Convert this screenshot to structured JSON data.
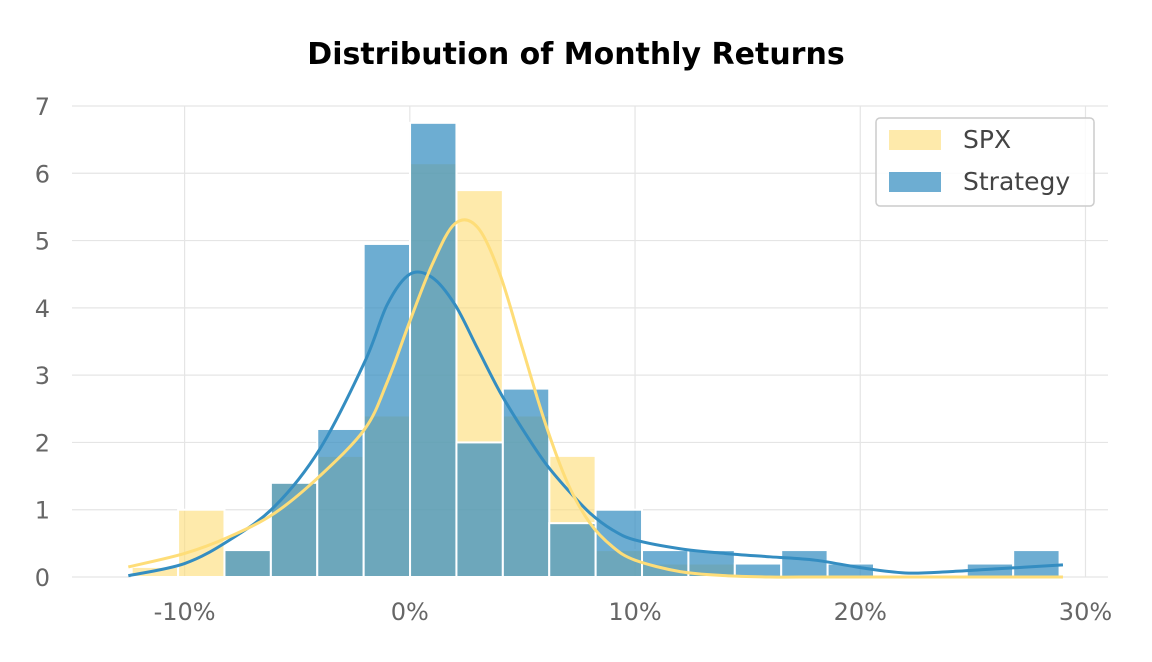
{
  "chart_data": {
    "type": "bar",
    "title": "Distribution of Monthly Returns",
    "xlabel": "",
    "ylabel": "",
    "x_unit": "%",
    "xlim": [
      -15,
      31
    ],
    "ylim": [
      0,
      7
    ],
    "bin_width": 2.06,
    "x_ticks": [
      -10,
      0,
      10,
      20,
      30
    ],
    "x_tick_labels": [
      "-10%",
      "0%",
      "10%",
      "20%",
      "30%"
    ],
    "y_ticks": [
      0,
      1,
      2,
      3,
      4,
      5,
      6,
      7
    ],
    "y_tick_labels": [
      "0",
      "1",
      "2",
      "3",
      "4",
      "5",
      "6",
      "7"
    ],
    "grid": true,
    "legend_position": "top-right",
    "bin_edges": [
      -12.35,
      -10.29,
      -8.23,
      -6.17,
      -4.11,
      -2.05,
      0.01,
      2.07,
      4.13,
      6.19,
      8.25,
      10.31,
      12.37,
      14.43,
      16.49,
      18.55,
      20.61,
      22.67,
      24.73,
      26.79,
      28.85
    ],
    "series": [
      {
        "name": "SPX",
        "color": "#fedd78",
        "values": [
          0.15,
          1.0,
          0.4,
          1.4,
          1.8,
          2.4,
          6.15,
          5.75,
          2.4,
          1.8,
          0.4,
          0.2,
          0.2,
          0.0,
          0.0,
          0.0,
          0.0,
          0.0,
          0.0,
          0.0
        ],
        "kde_x": [
          -12.5,
          -10,
          -8,
          -6,
          -4,
          -2,
          -1,
          0,
          1,
          2,
          3,
          4,
          5,
          6,
          7,
          8,
          9,
          10,
          12,
          14,
          16,
          18,
          20,
          24,
          29
        ],
        "kde_y": [
          0.15,
          0.35,
          0.6,
          0.95,
          1.5,
          2.2,
          2.9,
          3.8,
          4.65,
          5.25,
          5.2,
          4.5,
          3.4,
          2.3,
          1.4,
          0.8,
          0.45,
          0.25,
          0.08,
          0.02,
          0.0,
          0.0,
          0.0,
          0.0,
          0.0
        ]
      },
      {
        "name": "Strategy",
        "color": "#348dc1",
        "values": [
          0.0,
          0.0,
          0.4,
          1.4,
          2.2,
          4.95,
          6.75,
          2.0,
          2.8,
          0.8,
          1.0,
          0.4,
          0.4,
          0.2,
          0.4,
          0.2,
          0.0,
          0.0,
          0.2,
          0.4
        ],
        "kde_x": [
          -12.5,
          -10,
          -8,
          -6,
          -4,
          -2,
          -1,
          0,
          1,
          2,
          3,
          4,
          5,
          6,
          7,
          8,
          9,
          10,
          12,
          14,
          16,
          18,
          20,
          22,
          24,
          26,
          29
        ],
        "kde_y": [
          0.02,
          0.2,
          0.55,
          1.05,
          1.9,
          3.2,
          4.05,
          4.5,
          4.45,
          4.05,
          3.4,
          2.75,
          2.2,
          1.7,
          1.3,
          0.95,
          0.7,
          0.55,
          0.42,
          0.35,
          0.3,
          0.25,
          0.14,
          0.06,
          0.08,
          0.12,
          0.18
        ]
      }
    ]
  }
}
